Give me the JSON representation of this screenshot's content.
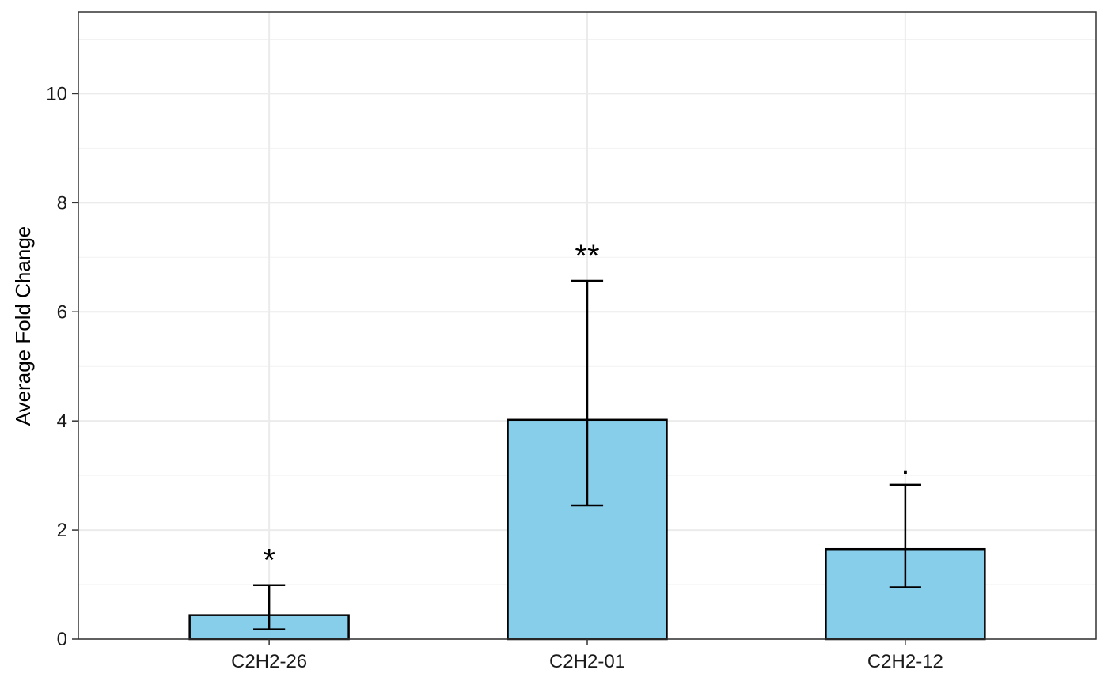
{
  "chart_data": {
    "type": "bar",
    "title": "",
    "xlabel": "",
    "ylabel": "Average Fold Change",
    "categories": [
      "C2H2-26",
      "C2H2-01",
      "C2H2-12"
    ],
    "values": [
      0.44,
      4.02,
      1.65
    ],
    "error_low": [
      0.18,
      2.45,
      0.95
    ],
    "error_high": [
      0.99,
      6.57,
      2.83
    ],
    "significance": [
      "*",
      "**",
      "."
    ],
    "ylim": [
      0,
      11.5
    ],
    "yticks": [
      0,
      2,
      4,
      6,
      8,
      10
    ],
    "ytick_labels": [
      "0",
      "2",
      "4",
      "6",
      "8",
      "10"
    ],
    "grid": true,
    "legend": "none",
    "colors": {
      "bar_fill": "#87CEEB",
      "bar_stroke": "#000000",
      "grid_major": "#EBEBEB",
      "grid_minor": "#F2F2F2",
      "panel_border": "#333333"
    }
  }
}
